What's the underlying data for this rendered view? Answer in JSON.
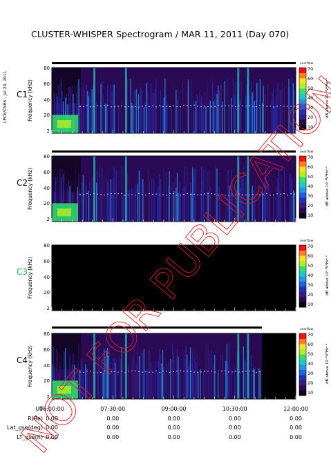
{
  "title": "CLUSTER-WHISPER Spectrogram / MAR 11, 2011 (Day 070)",
  "credit": "LPCE/CNRS - Jul 24, 2011",
  "watermark": "NOT FOR PUBLICATION",
  "colorbar": {
    "label": "dB above 10⁻⁸V²Hz⁻¹",
    "ticks": [
      "70",
      "60",
      "50",
      "40",
      "30",
      "20",
      "10"
    ],
    "overflow_label": "overflow"
  },
  "ephemeris": {
    "rows": [
      {
        "label": "UT",
        "values": [
          "06:00:00",
          "07:30:00",
          "09:00:00",
          "10:30:00",
          "12:00:00"
        ]
      },
      {
        "label": "R(Re)",
        "values": [
          "0.00",
          "0.00",
          "0.00",
          "0.00",
          "0.00"
        ]
      },
      {
        "label": "Lat_gse(deg)",
        "values": [
          "0.00",
          "0.00",
          "0.00",
          "0.00",
          "0.00"
        ]
      },
      {
        "label": "LT_gse(h)",
        "values": [
          "0.00",
          "0.00",
          "0.00",
          "0.00",
          "0.00"
        ]
      }
    ]
  },
  "chart_data": [
    {
      "type": "heatmap",
      "panel": "C1",
      "ylabel": "Frequency (kHz)",
      "yticks": [
        "80",
        "60",
        "40",
        "20",
        "2"
      ],
      "y_unit": "kHz",
      "x_range": [
        "06:00:00",
        "12:00:00"
      ],
      "data_end": "12:00:00",
      "has_data": true,
      "label_color": "#000000"
    },
    {
      "type": "heatmap",
      "panel": "C2",
      "ylabel": "Frequency (kHz)",
      "yticks": [
        "80",
        "60",
        "40",
        "20",
        "2"
      ],
      "y_unit": "kHz",
      "x_range": [
        "06:00:00",
        "12:00:00"
      ],
      "data_end": "12:00:00",
      "has_data": true,
      "label_color": "#000000"
    },
    {
      "type": "heatmap",
      "panel": "C3",
      "ylabel": "Frequency (kHz)",
      "yticks": [
        "80",
        "60",
        "40",
        "20",
        "2"
      ],
      "y_unit": "kHz",
      "x_range": [
        "06:00:00",
        "12:00:00"
      ],
      "has_data": false,
      "label_color": "#22bb44"
    },
    {
      "type": "heatmap",
      "panel": "C4",
      "ylabel": "Frequency (kHz)",
      "yticks": [
        "80",
        "60",
        "40",
        "20",
        "2"
      ],
      "y_unit": "kHz",
      "x_range": [
        "06:00:00",
        "12:00:00"
      ],
      "data_end": "11:10:00",
      "has_data": true,
      "label_color": "#000000"
    }
  ]
}
